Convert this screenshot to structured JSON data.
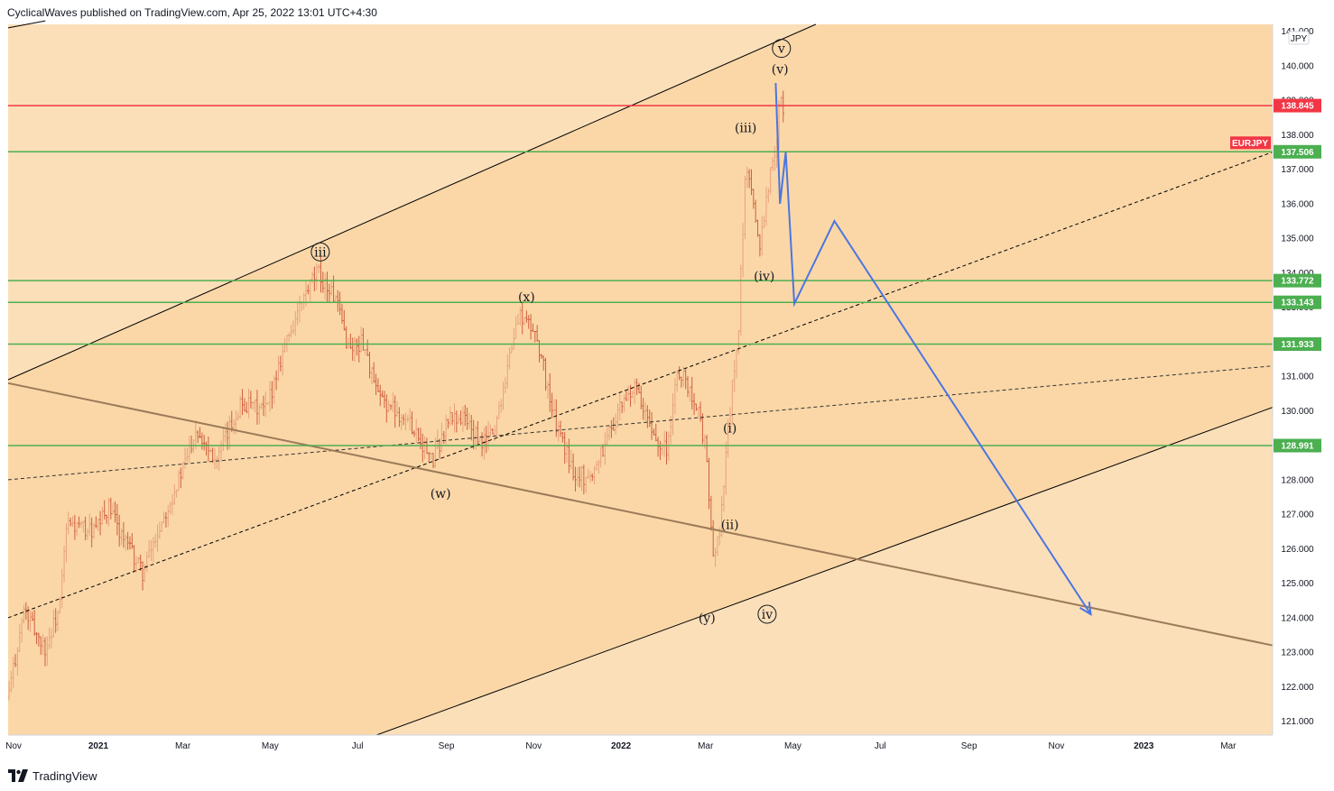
{
  "header": {
    "publish_line": "CyclicalWaves published on TradingView.com, Apr 25, 2022 13:01 UTC+4:30"
  },
  "footer": {
    "brand": "TradingView"
  },
  "colors": {
    "background_band_outer": "#fbdfb9",
    "background_band_inner": "#fbd7a7",
    "bar_up": "#e7a27d",
    "bar_down": "#cf5f3f",
    "resistance_red": "#f23645",
    "support_green": "#4caf50",
    "projection_blue": "#4a76e0",
    "channel_line": "#000000",
    "trend_brown": "#9b7a59"
  },
  "chart_data": {
    "type": "candlestick",
    "symbol": "EURJPY",
    "currency": "JPY",
    "ylim": [
      120.6,
      141.2
    ],
    "yticks": [
      121,
      122,
      123,
      124,
      125,
      126,
      127,
      128,
      129,
      130,
      131,
      132,
      133,
      134,
      135,
      136,
      137,
      138,
      139,
      140,
      141
    ],
    "xticks": [
      {
        "label": "Nov",
        "date": "2020-11-01",
        "bold": false
      },
      {
        "label": "2021",
        "date": "2021-01-01",
        "bold": true
      },
      {
        "label": "Mar",
        "date": "2021-03-01",
        "bold": false
      },
      {
        "label": "May",
        "date": "2021-05-01",
        "bold": false
      },
      {
        "label": "Jul",
        "date": "2021-07-01",
        "bold": false
      },
      {
        "label": "Sep",
        "date": "2021-09-01",
        "bold": false
      },
      {
        "label": "Nov",
        "date": "2021-11-01",
        "bold": false
      },
      {
        "label": "2022",
        "date": "2022-01-01",
        "bold": true
      },
      {
        "label": "Mar",
        "date": "2022-03-01",
        "bold": false
      },
      {
        "label": "May",
        "date": "2022-05-01",
        "bold": false
      },
      {
        "label": "Jul",
        "date": "2022-07-01",
        "bold": false
      },
      {
        "label": "Sep",
        "date": "2022-09-01",
        "bold": false
      },
      {
        "label": "Nov",
        "date": "2022-11-01",
        "bold": false
      },
      {
        "label": "2023",
        "date": "2023-01-01",
        "bold": true
      },
      {
        "label": "Mar",
        "date": "2023-03-01",
        "bold": false
      }
    ],
    "price_path": [
      [
        "2020-10-30",
        121.7
      ],
      [
        "2020-11-10",
        124.2
      ],
      [
        "2020-11-25",
        123.1
      ],
      [
        "2020-12-05",
        124.3
      ],
      [
        "2020-12-10",
        126.7
      ],
      [
        "2020-12-30",
        126.5
      ],
      [
        "2021-01-08",
        127.2
      ],
      [
        "2021-01-20",
        126.2
      ],
      [
        "2021-02-01",
        125.3
      ],
      [
        "2021-02-15",
        126.9
      ],
      [
        "2021-03-01",
        128.3
      ],
      [
        "2021-03-10",
        129.5
      ],
      [
        "2021-03-25",
        128.6
      ],
      [
        "2021-04-10",
        130.2
      ],
      [
        "2021-04-28",
        130.0
      ],
      [
        "2021-05-10",
        131.8
      ],
      [
        "2021-05-25",
        133.3
      ],
      [
        "2021-06-03",
        134.0
      ],
      [
        "2021-06-15",
        133.3
      ],
      [
        "2021-06-25",
        131.8
      ],
      [
        "2021-07-05",
        132.0
      ],
      [
        "2021-07-15",
        130.4
      ],
      [
        "2021-07-28",
        130.0
      ],
      [
        "2021-08-10",
        129.5
      ],
      [
        "2021-08-22",
        128.5
      ],
      [
        "2021-09-03",
        129.8
      ],
      [
        "2021-09-14",
        129.8
      ],
      [
        "2021-09-25",
        129.0
      ],
      [
        "2021-10-05",
        129.5
      ],
      [
        "2021-10-15",
        131.6
      ],
      [
        "2021-10-22",
        132.8
      ],
      [
        "2021-11-03",
        132.2
      ],
      [
        "2021-11-15",
        129.8
      ],
      [
        "2021-11-28",
        128.3
      ],
      [
        "2021-12-10",
        128.0
      ],
      [
        "2021-12-28",
        129.8
      ],
      [
        "2022-01-10",
        130.7
      ],
      [
        "2022-01-22",
        129.4
      ],
      [
        "2022-02-02",
        128.9
      ],
      [
        "2022-02-10",
        131.2
      ],
      [
        "2022-02-22",
        130.3
      ],
      [
        "2022-03-01",
        128.9
      ],
      [
        "2022-03-07",
        125.4
      ],
      [
        "2022-03-12",
        127.0
      ],
      [
        "2022-03-18",
        130.0
      ],
      [
        "2022-03-24",
        132.4
      ],
      [
        "2022-03-29",
        137.0
      ],
      [
        "2022-04-03",
        136.0
      ],
      [
        "2022-04-08",
        134.9
      ],
      [
        "2022-04-14",
        136.6
      ],
      [
        "2022-04-19",
        137.6
      ],
      [
        "2022-04-22",
        139.5
      ],
      [
        "2022-04-25",
        138.4
      ]
    ],
    "horizontal_levels": [
      {
        "value": 138.845,
        "label": "138.845",
        "color": "#f23645"
      },
      {
        "value": 137.506,
        "label": "137.506",
        "color": "#4caf50"
      },
      {
        "value": 133.772,
        "label": "133.772",
        "color": "#4caf50"
      },
      {
        "value": 133.143,
        "label": "133.143",
        "color": "#4caf50"
      },
      {
        "value": 131.933,
        "label": "131.933",
        "color": "#4caf50"
      },
      {
        "value": 128.991,
        "label": "128.991",
        "color": "#4caf50"
      }
    ],
    "symbol_tag": {
      "text": "EURJPY",
      "value": 137.506
    },
    "channel_lines": [
      {
        "style": "solid",
        "color": "#000000",
        "points": [
          [
            "2020-10-30",
            130.9
          ],
          [
            "2022-05-17",
            141.2
          ]
        ]
      },
      {
        "style": "solid",
        "color": "#000000",
        "points": [
          [
            "2021-07-01",
            120.4
          ],
          [
            "2023-04-01",
            130.1
          ]
        ]
      },
      {
        "style": "solid",
        "color": "#000000",
        "points": [
          [
            "2020-10-30",
            141.1
          ],
          [
            "2020-11-25",
            141.3
          ]
        ]
      },
      {
        "style": "dashed",
        "color": "#000000",
        "points": [
          [
            "2020-10-30",
            124.0
          ],
          [
            "2023-04-01",
            137.5
          ]
        ]
      },
      {
        "style": "dashed",
        "color": "#333333",
        "points": [
          [
            "2020-10-30",
            128.0
          ],
          [
            "2023-04-01",
            131.3
          ]
        ]
      },
      {
        "style": "solid",
        "color": "#9b7a59",
        "points": [
          [
            "2020-10-30",
            130.8
          ],
          [
            "2023-04-01",
            123.2
          ]
        ]
      }
    ],
    "projection_path": [
      [
        "2022-04-19",
        139.5
      ],
      [
        "2022-04-22",
        136.0
      ],
      [
        "2022-04-26",
        137.5
      ],
      [
        "2022-05-02",
        133.1
      ],
      [
        "2022-05-30",
        135.5
      ],
      [
        "2022-11-25",
        124.1
      ]
    ],
    "wave_labels": [
      {
        "text": "iii",
        "circled": true,
        "date": "2021-06-05",
        "value": 134.5
      },
      {
        "text": "(w)",
        "circled": false,
        "date": "2021-08-28",
        "value": 127.5
      },
      {
        "text": "(x)",
        "circled": false,
        "date": "2021-10-27",
        "value": 133.2
      },
      {
        "text": "(i)",
        "circled": false,
        "date": "2022-03-18",
        "value": 129.4
      },
      {
        "text": "(ii)",
        "circled": false,
        "date": "2022-03-18",
        "value": 126.6
      },
      {
        "text": "(y)",
        "circled": false,
        "date": "2022-03-02",
        "value": 123.9
      },
      {
        "text": "iv",
        "circled": true,
        "date": "2022-04-13",
        "value": 124.0
      },
      {
        "text": "(iii)",
        "circled": false,
        "date": "2022-03-29",
        "value": 138.1
      },
      {
        "text": "(iv)",
        "circled": false,
        "date": "2022-04-11",
        "value": 133.8
      },
      {
        "text": "(v)",
        "circled": false,
        "date": "2022-04-22",
        "value": 139.8
      },
      {
        "text": "v",
        "circled": true,
        "date": "2022-04-23",
        "value": 140.4
      }
    ]
  }
}
